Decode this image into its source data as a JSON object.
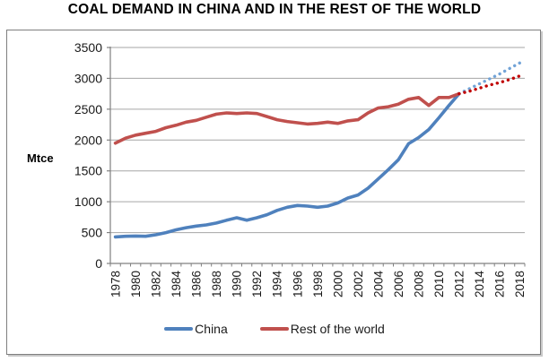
{
  "title": "COAL DEMAND IN CHINA AND IN THE REST OF THE WORLD",
  "chart_data": {
    "type": "line",
    "title": "COAL DEMAND IN CHINA AND IN THE REST OF THE WORLD",
    "ylabel": "Mtce",
    "ylim": [
      0,
      3500
    ],
    "y_ticks": [
      0,
      500,
      1000,
      1500,
      2000,
      2500,
      3000,
      3500
    ],
    "x_tick_labels": [
      "1978",
      "1980",
      "1982",
      "1984",
      "1986",
      "1988",
      "1990",
      "1992",
      "1994",
      "1996",
      "1998",
      "2000",
      "2002",
      "2004",
      "2006",
      "2008",
      "2010",
      "2012",
      "2014",
      "2016",
      "2018"
    ],
    "x_range": [
      1978,
      2018
    ],
    "grid": true,
    "legend_position": "bottom-center",
    "colors": {
      "gridline": "#a6a6a6",
      "axis": "#808080",
      "text": "#1a1a1a",
      "china": "#4F81BD",
      "rest_of_world": "#C0504D",
      "china_projection": "#71A3D7",
      "rest_of_world_projection": "#C00000"
    },
    "series": [
      {
        "id": "china",
        "name": "China",
        "style": "solid",
        "color": "#4F81BD",
        "x_start": 1978,
        "values": [
          430,
          440,
          445,
          440,
          465,
          500,
          545,
          580,
          605,
          625,
          655,
          700,
          740,
          700,
          740,
          790,
          860,
          910,
          940,
          930,
          910,
          930,
          980,
          1060,
          1110,
          1220,
          1370,
          1520,
          1680,
          1940,
          2040,
          2170,
          2360,
          2560,
          2750
        ]
      },
      {
        "id": "rest-of-world",
        "name": "Rest of the world",
        "style": "solid",
        "color": "#C0504D",
        "x_start": 1978,
        "values": [
          1950,
          2030,
          2080,
          2110,
          2140,
          2200,
          2240,
          2290,
          2320,
          2370,
          2420,
          2440,
          2430,
          2440,
          2430,
          2380,
          2330,
          2300,
          2280,
          2260,
          2270,
          2290,
          2270,
          2310,
          2330,
          2440,
          2520,
          2540,
          2580,
          2660,
          2690,
          2560,
          2690,
          2690,
          2750
        ]
      },
      {
        "id": "china-projection",
        "style": "dotted",
        "color": "#71A3D7",
        "x_start": 2012,
        "values": [
          2750,
          2830,
          2910,
          2990,
          3070,
          3160,
          3250
        ]
      },
      {
        "id": "rest-of-world-projection",
        "style": "dotted",
        "color": "#C00000",
        "x_start": 2012,
        "values": [
          2750,
          2790,
          2840,
          2890,
          2930,
          2980,
          3040
        ]
      }
    ]
  }
}
